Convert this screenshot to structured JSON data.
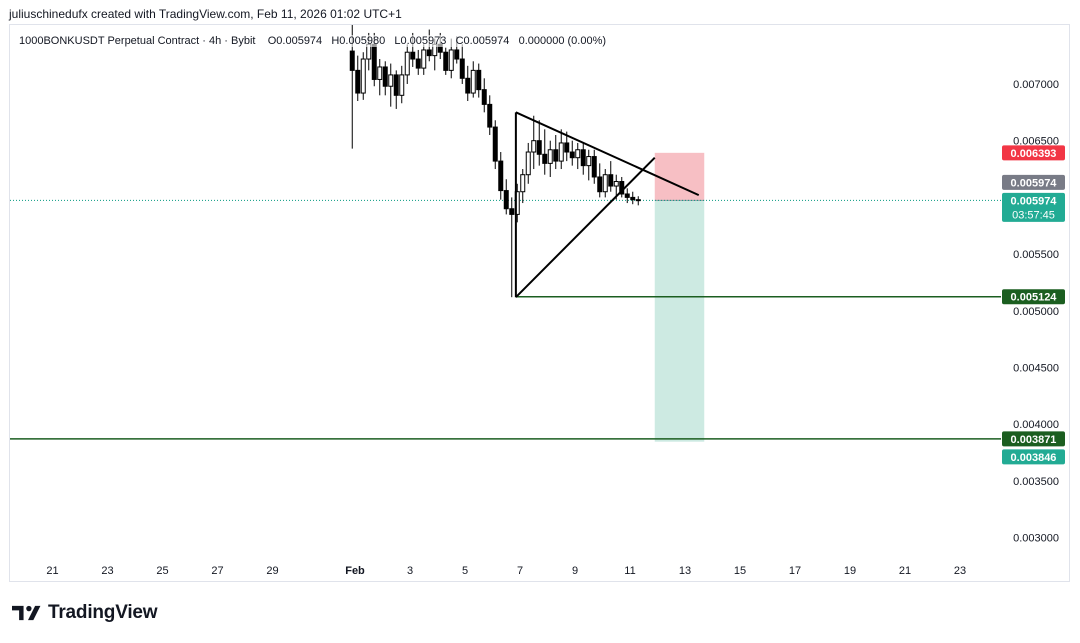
{
  "header": {
    "credit": "juliuschinedufx created with TradingView.com, Feb 11, 2026 01:02 UTC+1"
  },
  "legend": {
    "symbol": "1000BONKUSDT Perpetual Contract",
    "interval": "4h",
    "exchange": "Bybit",
    "open": "O0.005974",
    "high": "H0.005980",
    "low": "L0.005973",
    "close": "C0.005974",
    "change": "0.000000 (0.00%)"
  },
  "brand": {
    "name": "TradingView"
  },
  "colors": {
    "up": "#089981",
    "down": "#f23645",
    "candle": "#000000",
    "stop_zone": "#f7bfc4",
    "target_zone": "#cdeae2",
    "level_line": "#1b5e20",
    "price_line": "#089981",
    "badge_red": "#f23645",
    "badge_grey": "#787b86",
    "badge_green": "#22ab94",
    "badge_dark": "#1b5e20"
  },
  "chart_data": {
    "type": "candlestick",
    "interval": "4h",
    "x_axis": {
      "ticks": [
        "21",
        "23",
        "25",
        "27",
        "29",
        "Feb",
        "3",
        "5",
        "7",
        "9",
        "11",
        "13",
        "15",
        "17",
        "19",
        "21",
        "23"
      ],
      "tick_days": [
        -11,
        -9,
        -7,
        -5,
        -3,
        0,
        2,
        4,
        6,
        8,
        10,
        12,
        14,
        16,
        18,
        20,
        22
      ]
    },
    "y_axis": {
      "range": [
        0.0026,
        0.00752
      ],
      "ticks": [
        "0.007000",
        "0.006500",
        "0.005500",
        "0.005000",
        "0.004500",
        "0.004000",
        "0.003500",
        "0.003000"
      ],
      "tick_values": [
        0.007,
        0.0065,
        0.0055,
        0.005,
        0.0045,
        0.004,
        0.0035,
        0.003
      ]
    },
    "candles": [
      {
        "day": -0.1,
        "o": 0.00729,
        "h": 0.00752,
        "l": 0.00643,
        "c": 0.00712
      },
      {
        "day": 0.1,
        "o": 0.00712,
        "h": 0.00725,
        "l": 0.00685,
        "c": 0.00692
      },
      {
        "day": 0.3,
        "o": 0.00692,
        "h": 0.00728,
        "l": 0.00686,
        "c": 0.00722
      },
      {
        "day": 0.5,
        "o": 0.00722,
        "h": 0.00745,
        "l": 0.00712,
        "c": 0.00735
      },
      {
        "day": 0.7,
        "o": 0.00735,
        "h": 0.00745,
        "l": 0.00698,
        "c": 0.00704
      },
      {
        "day": 0.9,
        "o": 0.00704,
        "h": 0.00722,
        "l": 0.0069,
        "c": 0.00715
      },
      {
        "day": 1.1,
        "o": 0.00715,
        "h": 0.0072,
        "l": 0.0069,
        "c": 0.00698
      },
      {
        "day": 1.3,
        "o": 0.00698,
        "h": 0.00718,
        "l": 0.0068,
        "c": 0.00708
      },
      {
        "day": 1.5,
        "o": 0.00708,
        "h": 0.00712,
        "l": 0.00678,
        "c": 0.0069
      },
      {
        "day": 1.7,
        "o": 0.0069,
        "h": 0.00716,
        "l": 0.00683,
        "c": 0.00708
      },
      {
        "day": 1.9,
        "o": 0.00708,
        "h": 0.00735,
        "l": 0.007,
        "c": 0.00728
      },
      {
        "day": 2.1,
        "o": 0.00728,
        "h": 0.00745,
        "l": 0.00715,
        "c": 0.00722
      },
      {
        "day": 2.3,
        "o": 0.00722,
        "h": 0.0073,
        "l": 0.00708,
        "c": 0.00714
      },
      {
        "day": 2.5,
        "o": 0.00714,
        "h": 0.00735,
        "l": 0.00708,
        "c": 0.0073
      },
      {
        "day": 2.7,
        "o": 0.0073,
        "h": 0.00748,
        "l": 0.0072,
        "c": 0.00725
      },
      {
        "day": 2.9,
        "o": 0.00725,
        "h": 0.0074,
        "l": 0.00712,
        "c": 0.00735
      },
      {
        "day": 3.1,
        "o": 0.00735,
        "h": 0.00745,
        "l": 0.00722,
        "c": 0.00728
      },
      {
        "day": 3.3,
        "o": 0.00728,
        "h": 0.00732,
        "l": 0.00708,
        "c": 0.00712
      },
      {
        "day": 3.5,
        "o": 0.00712,
        "h": 0.0074,
        "l": 0.00705,
        "c": 0.0073
      },
      {
        "day": 3.7,
        "o": 0.0073,
        "h": 0.00742,
        "l": 0.00718,
        "c": 0.00722
      },
      {
        "day": 3.9,
        "o": 0.00722,
        "h": 0.00735,
        "l": 0.007,
        "c": 0.00705
      },
      {
        "day": 4.1,
        "o": 0.00705,
        "h": 0.00716,
        "l": 0.00685,
        "c": 0.00692
      },
      {
        "day": 4.3,
        "o": 0.00692,
        "h": 0.0072,
        "l": 0.00688,
        "c": 0.00712
      },
      {
        "day": 4.5,
        "o": 0.00712,
        "h": 0.00718,
        "l": 0.00688,
        "c": 0.00695
      },
      {
        "day": 4.7,
        "o": 0.00695,
        "h": 0.00705,
        "l": 0.00675,
        "c": 0.00682
      },
      {
        "day": 4.9,
        "o": 0.00682,
        "h": 0.0069,
        "l": 0.00655,
        "c": 0.00662
      },
      {
        "day": 5.1,
        "o": 0.00662,
        "h": 0.00668,
        "l": 0.00625,
        "c": 0.00632
      },
      {
        "day": 5.3,
        "o": 0.00632,
        "h": 0.0064,
        "l": 0.00598,
        "c": 0.00606
      },
      {
        "day": 5.5,
        "o": 0.00606,
        "h": 0.00616,
        "l": 0.00585,
        "c": 0.0059
      },
      {
        "day": 5.7,
        "o": 0.0059,
        "h": 0.006,
        "l": 0.00512,
        "c": 0.00585
      },
      {
        "day": 5.9,
        "o": 0.00585,
        "h": 0.00612,
        "l": 0.00578,
        "c": 0.00605
      },
      {
        "day": 6.1,
        "o": 0.00605,
        "h": 0.00625,
        "l": 0.00595,
        "c": 0.0062
      },
      {
        "day": 6.3,
        "o": 0.0062,
        "h": 0.00648,
        "l": 0.00612,
        "c": 0.0064
      },
      {
        "day": 6.5,
        "o": 0.0064,
        "h": 0.00672,
        "l": 0.00625,
        "c": 0.0065
      },
      {
        "day": 6.7,
        "o": 0.0065,
        "h": 0.00668,
        "l": 0.00628,
        "c": 0.00638
      },
      {
        "day": 6.9,
        "o": 0.00638,
        "h": 0.0066,
        "l": 0.0062,
        "c": 0.0063
      },
      {
        "day": 7.1,
        "o": 0.0063,
        "h": 0.0065,
        "l": 0.00618,
        "c": 0.00642
      },
      {
        "day": 7.3,
        "o": 0.00642,
        "h": 0.00655,
        "l": 0.00625,
        "c": 0.00632
      },
      {
        "day": 7.5,
        "o": 0.00632,
        "h": 0.0066,
        "l": 0.00625,
        "c": 0.00648
      },
      {
        "day": 7.7,
        "o": 0.00648,
        "h": 0.00658,
        "l": 0.00632,
        "c": 0.0064
      },
      {
        "day": 7.9,
        "o": 0.0064,
        "h": 0.0065,
        "l": 0.00628,
        "c": 0.00635
      },
      {
        "day": 8.1,
        "o": 0.00635,
        "h": 0.00648,
        "l": 0.00625,
        "c": 0.00642
      },
      {
        "day": 8.3,
        "o": 0.00642,
        "h": 0.00648,
        "l": 0.0062,
        "c": 0.00628
      },
      {
        "day": 8.5,
        "o": 0.00628,
        "h": 0.00642,
        "l": 0.00615,
        "c": 0.00636
      },
      {
        "day": 8.7,
        "o": 0.00636,
        "h": 0.00642,
        "l": 0.00612,
        "c": 0.00618
      },
      {
        "day": 8.9,
        "o": 0.00618,
        "h": 0.0063,
        "l": 0.006,
        "c": 0.00605
      },
      {
        "day": 9.1,
        "o": 0.00605,
        "h": 0.00625,
        "l": 0.006,
        "c": 0.0062
      },
      {
        "day": 9.3,
        "o": 0.0062,
        "h": 0.00632,
        "l": 0.00605,
        "c": 0.0061
      },
      {
        "day": 9.5,
        "o": 0.0061,
        "h": 0.0062,
        "l": 0.00598,
        "c": 0.00614
      },
      {
        "day": 9.7,
        "o": 0.00614,
        "h": 0.00618,
        "l": 0.006,
        "c": 0.00603
      },
      {
        "day": 9.9,
        "o": 0.00603,
        "h": 0.00608,
        "l": 0.00595,
        "c": 0.006
      },
      {
        "day": 10.1,
        "o": 0.006,
        "h": 0.00605,
        "l": 0.00594,
        "c": 0.00598
      },
      {
        "day": 10.3,
        "o": 0.00598,
        "h": 0.00601,
        "l": 0.00593,
        "c": 0.005974
      }
    ],
    "drawings": {
      "triangle_upper": {
        "from": {
          "day": 5.85,
          "price": 0.00675
        },
        "to": {
          "day": 12.5,
          "price": 0.00602
        }
      },
      "triangle_lower": {
        "from": {
          "day": 5.85,
          "price": 0.00512
        },
        "to": {
          "day": 10.9,
          "price": 0.00635
        }
      },
      "wedge_base": {
        "from": {
          "day": 5.85,
          "price": 0.00675
        },
        "to": {
          "day": 5.85,
          "price": 0.00512
        }
      },
      "stop_zone": {
        "day_start": 10.9,
        "day_end": 12.7,
        "price_top": 0.006393,
        "price_bottom": 0.005974
      },
      "target_zone": {
        "day_start": 10.9,
        "day_end": 12.7,
        "price_top": 0.005974,
        "price_bottom": 0.003846
      },
      "support_line": {
        "price": 0.005124,
        "day_start": 5.85
      },
      "target_line": {
        "price": 0.003871
      }
    },
    "price_labels": [
      {
        "id": "stop",
        "text": "0.006393",
        "price": 0.006393,
        "color": "#f23645"
      },
      {
        "id": "entry",
        "text": "0.005974",
        "price": 0.005974,
        "color": "#787b86"
      },
      {
        "id": "last",
        "text": "0.005974",
        "price": 0.005974,
        "color": "#22ab94",
        "countdown": "03:57:45"
      },
      {
        "id": "support",
        "text": "0.005124",
        "price": 0.005124,
        "color": "#1b5e20"
      },
      {
        "id": "target-line",
        "text": "0.003871",
        "price": 0.003871,
        "color": "#1b5e20"
      },
      {
        "id": "target",
        "text": "0.003846",
        "price": 0.003846,
        "color": "#22ab94"
      }
    ]
  }
}
